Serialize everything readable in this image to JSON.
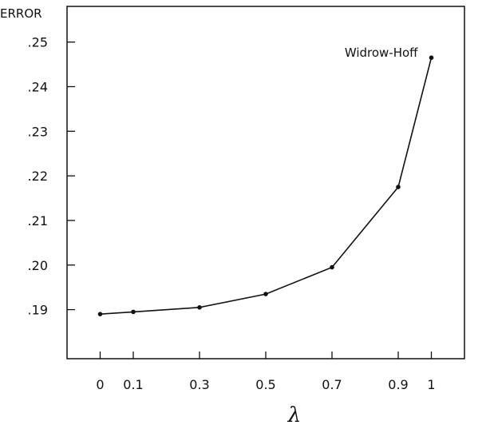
{
  "chart_data": {
    "type": "line",
    "ylabel": "ERROR",
    "xlabel": "λ",
    "x": [
      0,
      0.1,
      0.3,
      0.5,
      0.7,
      0.9,
      1
    ],
    "x_tick_labels": [
      "0",
      "0.1",
      "0.3",
      "0.5",
      "0.7",
      "0.9",
      "1"
    ],
    "y_tick_values": [
      0.19,
      0.2,
      0.21,
      0.22,
      0.23,
      0.24,
      0.25
    ],
    "y_tick_labels": [
      ".19",
      ".20",
      ".21",
      ".22",
      ".23",
      ".24",
      ".25"
    ],
    "series": [
      {
        "values": [
          0.189,
          0.1895,
          0.1905,
          0.1935,
          0.1995,
          0.2175,
          0.2465
        ]
      }
    ],
    "ylim": [
      0.179,
      0.258
    ],
    "xlim": [
      -0.1,
      1.1
    ],
    "annotations": [
      {
        "text": "Widrow-Hoff",
        "x": 1,
        "y": 0.2465
      }
    ],
    "grid": false,
    "colors": {
      "line": "#111111",
      "axes": "#111111"
    }
  }
}
